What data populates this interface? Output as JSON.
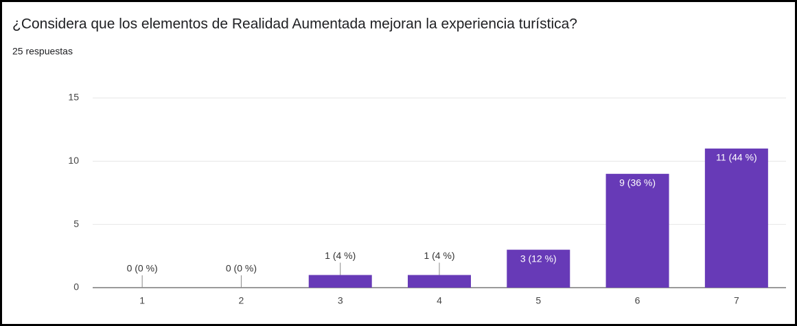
{
  "chart_data": {
    "type": "bar",
    "title": "¿Considera que los elementos de Realidad Aumentada mejoran la experiencia turística?",
    "subtitle": "25 respuestas",
    "categories": [
      "1",
      "2",
      "3",
      "4",
      "5",
      "6",
      "7"
    ],
    "values": [
      0,
      0,
      1,
      1,
      3,
      9,
      11
    ],
    "value_labels": [
      "0 (0 %)",
      "0 (0 %)",
      "1 (4 %)",
      "1 (4 %)",
      "3 (12 %)",
      "9 (36 %)",
      "11 (44 %)"
    ],
    "color": "#673ab7",
    "ylim": [
      0,
      15
    ],
    "yticks": [
      0,
      5,
      10,
      15
    ],
    "grid": true
  }
}
